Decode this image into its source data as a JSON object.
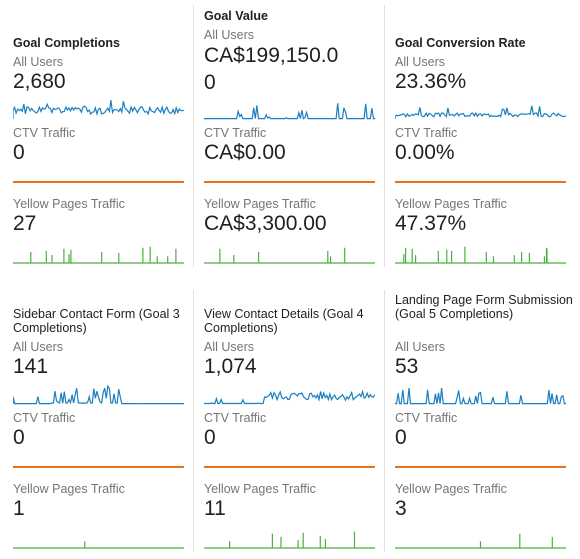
{
  "colors": {
    "all_users": "#1a7fc1",
    "ctv": "#e8711a",
    "yellow_pages": "#4caf3f",
    "divider": "#e0e0e0"
  },
  "segments": {
    "all_users": "All Users",
    "ctv": "CTV Traffic",
    "yellow_pages": "Yellow Pages Traffic"
  },
  "cards": [
    {
      "title": "Goal Completions",
      "all_users_value": "2,680",
      "ctv_value": "0",
      "yellow_pages_value": "27"
    },
    {
      "title": "Goal Value",
      "all_users_value": "CA$199,150.0\n0",
      "ctv_value": "CA$0.00",
      "yellow_pages_value": "CA$3,300.00"
    },
    {
      "title": "Goal Conversion Rate",
      "all_users_value": "23.36%",
      "ctv_value": "0.00%",
      "yellow_pages_value": "47.37%"
    },
    {
      "title": "Sidebar Contact Form (Goal 3 Completions)",
      "all_users_value": "141",
      "ctv_value": "0",
      "yellow_pages_value": "1"
    },
    {
      "title": "View Contact Details (Goal 4 Completions)",
      "all_users_value": "1,074",
      "ctv_value": "0",
      "yellow_pages_value": "11"
    },
    {
      "title": "Landing Page Form Submission (Goal 5 Completions)",
      "all_users_value": "53",
      "ctv_value": "0",
      "yellow_pages_value": "3"
    }
  ]
}
